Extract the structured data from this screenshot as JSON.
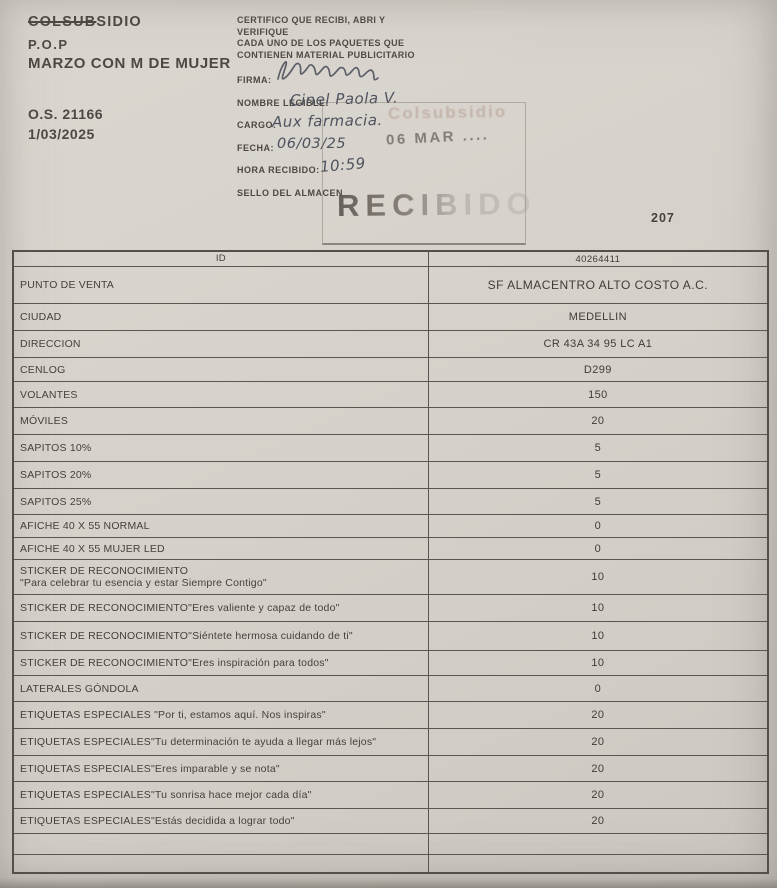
{
  "document": {
    "program": {
      "brand_struck": "COLSUB",
      "brand_rest": "SIDIO",
      "line2": "P.O.P",
      "line3": "MARZO CON M DE MUJER",
      "order_number": "O.S. 21166",
      "order_date": "1/03/2025"
    },
    "certification": {
      "lines": [
        "CERTIFICO QUE RECIBI, ABRI Y",
        "VERIFIQUE",
        "CADA UNO DE LOS PAQUETES QUE",
        "CONTIENEN MATERIAL PUBLICITARIO"
      ]
    },
    "receipt_fields": [
      {
        "label": "FIRMA:",
        "value": ""
      },
      {
        "label": "NOMBRE LEGIBLE:",
        "value": "Cinel Paola V."
      },
      {
        "label": "CARGO:",
        "value": "Aux farmacia."
      },
      {
        "label": "FECHA:",
        "value": "06/03/25"
      },
      {
        "label": "HORA RECIBIDO:",
        "value": "10:59"
      },
      {
        "label": "SELLO DEL ALMACEN",
        "value": ""
      }
    ],
    "stamps": {
      "faint_stamp": "Colsubsidio",
      "date_stamp": "06 MAR ....",
      "received_stamp": "RECIBIDO"
    },
    "page_number": "207"
  },
  "table": {
    "rows": [
      {
        "label": "ID",
        "value": "40264411"
      },
      {
        "label": "PUNTO DE VENTA",
        "value": "SF ALMACENTRO ALTO COSTO A.C."
      },
      {
        "label": "CIUDAD",
        "value": "MEDELLIN"
      },
      {
        "label": "DIRECCION",
        "value": "CR 43A 34 95 LC A1"
      },
      {
        "label": "CENLOG",
        "value": "D299"
      },
      {
        "label": "VOLANTES",
        "value": "150"
      },
      {
        "label": "MÓVILES",
        "value": "20"
      },
      {
        "label": "SAPITOS 10%",
        "value": "5"
      },
      {
        "label": "SAPITOS 20%",
        "value": "5"
      },
      {
        "label": "SAPITOS 25%",
        "value": "5"
      },
      {
        "label": "AFICHE 40 X 55 NORMAL",
        "value": "0"
      },
      {
        "label": "AFICHE 40 X 55 MUJER LED",
        "value": "0"
      },
      {
        "label": "STICKER DE RECONOCIMIENTO\n\"Para celebrar tu esencia y estar Siempre Contigo\"",
        "value": "10"
      },
      {
        "label": "STICKER DE RECONOCIMIENTO\"Eres valiente y capaz de todo\"",
        "value": "10"
      },
      {
        "label": "STICKER DE RECONOCIMIENTO\"Siéntete hermosa cuidando de ti\"",
        "value": "10"
      },
      {
        "label": "STICKER DE RECONOCIMIENTO\"Eres inspiración para todos\"",
        "value": "10"
      },
      {
        "label": "LATERALES GÓNDOLA",
        "value": "0"
      },
      {
        "label": "ETIQUETAS ESPECIALES \"Por ti, estamos aquí. Nos inspiras\"",
        "value": "20"
      },
      {
        "label": "ETIQUETAS ESPECIALES\"Tu determinación te ayuda a llegar más lejos\"",
        "value": "20"
      },
      {
        "label": "ETIQUETAS ESPECIALES\"Eres imparable y se nota\"",
        "value": "20"
      },
      {
        "label": "ETIQUETAS ESPECIALES\"Tu sonrisa hace mejor cada día\"",
        "value": "20"
      },
      {
        "label": "ETIQUETAS ESPECIALES\"Estás decidida a lograr todo\"",
        "value": "20"
      },
      {
        "label": "",
        "value": ""
      },
      {
        "label": "",
        "value": ""
      }
    ]
  }
}
